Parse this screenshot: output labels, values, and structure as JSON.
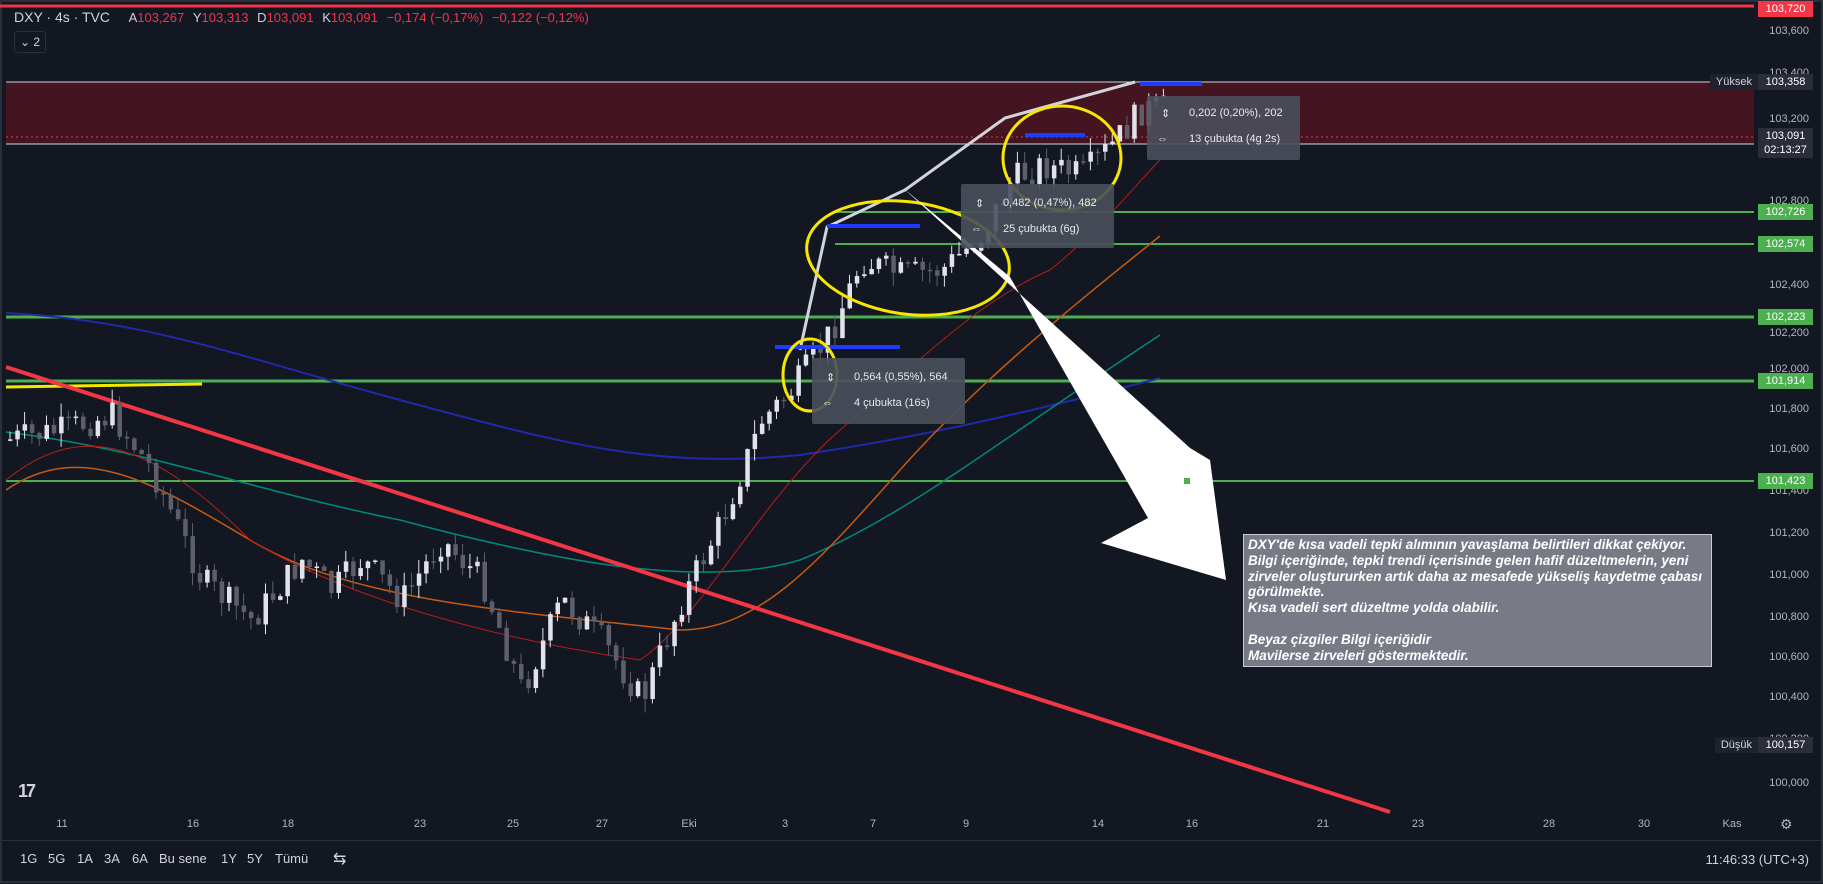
{
  "header": {
    "symbol": "DXY · 4s · TVC",
    "open_label": "A",
    "open_value": "103,267",
    "high_label": "Y",
    "high_value": "103,313",
    "low_label": "D",
    "low_value": "103,091",
    "close_label": "K",
    "close_value": "103,091",
    "change": "−0,174 (−0,17%)",
    "change2": "−0,122 (−0,12%)",
    "collapse_label": "2"
  },
  "price_axis": {
    "ticks": [
      "103,600",
      "103,400",
      "103,200",
      "102,800",
      "102,600",
      "102,400",
      "102,200",
      "102,000",
      "101,800",
      "101,600",
      "101,400",
      "101,200",
      "101,000",
      "100,800",
      "100,600",
      "100,400",
      "100,200",
      "100,000"
    ],
    "labels": [
      {
        "value": "103,720",
        "color": "#f23645"
      },
      {
        "value": "103,358",
        "color": "#2a2e39",
        "tag": "Yüksek"
      },
      {
        "value": "103,091",
        "color": "#2a2e39",
        "sub": "02:13:27"
      },
      {
        "value": "102,726",
        "color": "#4caf50"
      },
      {
        "value": "102,574",
        "color": "#4caf50"
      },
      {
        "value": "102,223",
        "color": "#4caf50"
      },
      {
        "value": "101,914",
        "color": "#4caf50"
      },
      {
        "value": "101,423",
        "color": "#4caf50"
      },
      {
        "value": "100,157",
        "color": "#2a2e39",
        "tag": "Düşük"
      }
    ]
  },
  "time_axis": {
    "ticks": [
      "11",
      "16",
      "18",
      "23",
      "25",
      "27",
      "Eki",
      "3",
      "7",
      "9",
      "14",
      "16",
      "21",
      "23",
      "28",
      "30",
      "Kas"
    ]
  },
  "measure_tooltips": [
    {
      "line1": "0,564 (0,55%), 564",
      "line2": "4 çubukta (16s)"
    },
    {
      "line1": "0,482 (0,47%), 482",
      "line2": "25 çubukta (6g)"
    },
    {
      "line1": "0,202 (0,20%), 202",
      "line2": "13 çubukta (4g 2s)"
    }
  ],
  "note": {
    "p1": "DXY'de kısa vadeli tepki alımının yavaşlama belirtileri dikkat çekiyor. Bilgi içeriğinde, tepki trendi içerisinde gelen hafif düzeltmelerin, yeni zirveler oluştururken artık daha az mesafede yükseliş kaydetme çabası görülmekte.",
    "p2": "Kısa vadeli sert düzeltme yolda olabilir.",
    "p3": "Beyaz çizgiler Bilgi içeriğidir",
    "p4": "Mavilerse zirveleri göstermektedir."
  },
  "bottom_bar": {
    "ranges": [
      "1G",
      "5G",
      "1A",
      "3A",
      "6A",
      "Bu sene",
      "1Y",
      "5Y",
      "Tümü"
    ],
    "clock": "11:46:33 (UTC+3)"
  },
  "colors": {
    "red": "#f23645",
    "green": "#4caf50",
    "yellow": "#f7e600",
    "blue": "#1e3cff",
    "bg": "#131722"
  }
}
